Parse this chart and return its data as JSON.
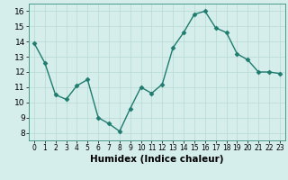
{
  "x": [
    0,
    1,
    2,
    3,
    4,
    5,
    6,
    7,
    8,
    9,
    10,
    11,
    12,
    13,
    14,
    15,
    16,
    17,
    18,
    19,
    20,
    21,
    22,
    23
  ],
  "y": [
    13.9,
    12.6,
    10.5,
    10.2,
    11.1,
    11.5,
    9.0,
    8.6,
    8.1,
    9.6,
    11.0,
    10.6,
    11.2,
    13.6,
    14.6,
    15.8,
    16.0,
    14.9,
    14.6,
    13.2,
    12.8,
    12.0,
    12.0,
    11.9
  ],
  "line_color": "#1e7b6e",
  "marker": "D",
  "markersize": 2.5,
  "linewidth": 1.0,
  "xlabel": "Humidex (Indice chaleur)",
  "xlabel_fontsize": 7.5,
  "xtick_labels": [
    "0",
    "1",
    "2",
    "3",
    "4",
    "5",
    "6",
    "7",
    "8",
    "9",
    "10",
    "11",
    "12",
    "13",
    "14",
    "15",
    "16",
    "17",
    "18",
    "19",
    "20",
    "21",
    "22",
    "23"
  ],
  "ylim": [
    7.5,
    16.5
  ],
  "yticks": [
    8,
    9,
    10,
    11,
    12,
    13,
    14,
    15,
    16
  ],
  "ytick_fontsize": 6.5,
  "xtick_fontsize": 5.5,
  "bg_color": "#d5eeeb",
  "grid_color": "#b8d8d4",
  "spine_color": "#4a9a8a"
}
